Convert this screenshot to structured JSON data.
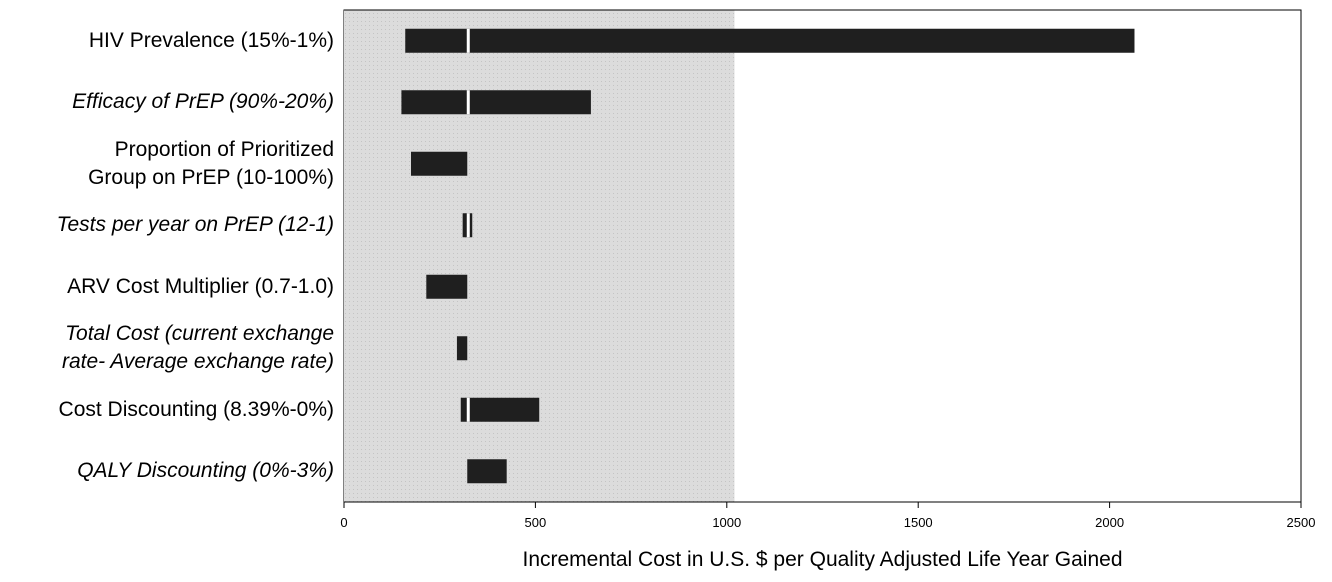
{
  "chart_data": {
    "type": "bar",
    "subtype": "tornado",
    "base_value": 322,
    "shaded_region": [
      0,
      1020
    ],
    "xlabel": "Incremental Cost in U.S. $ per Quality Adjusted Life Year Gained",
    "xlim": [
      0,
      2500
    ],
    "xticks": [
      "0",
      "500",
      "1000",
      "1500",
      "2000",
      "2500"
    ],
    "xtick_values": [
      0,
      500,
      1000,
      1500,
      2000,
      2500
    ],
    "grid": false,
    "legend": "none",
    "colors": {
      "bar": "#1f1f1f",
      "shade": "#dcdcdc",
      "axis": "#000000"
    },
    "categories": [
      {
        "lines": [
          "HIV Prevalence (15%-1%)"
        ],
        "italic": false,
        "low": 160,
        "high": 2065
      },
      {
        "lines": [
          "Efficacy of PrEP (90%-20%)"
        ],
        "italic": true,
        "low": 150,
        "high": 645
      },
      {
        "lines": [
          "Proportion of Prioritized",
          "Group on PrEP (10-100%)"
        ],
        "italic": false,
        "low": 175,
        "high": 322
      },
      {
        "lines": [
          "Tests per year on PrEP (12-1)"
        ],
        "italic": true,
        "low": 310,
        "high": 335
      },
      {
        "lines": [
          "ARV Cost Multiplier (0.7-1.0)"
        ],
        "italic": false,
        "low": 215,
        "high": 322
      },
      {
        "lines": [
          "Total Cost (current exchange",
          "rate- Average exchange rate)"
        ],
        "italic": true,
        "low": 295,
        "high": 322
      },
      {
        "lines": [
          "Cost Discounting (8.39%-0%)"
        ],
        "italic": false,
        "low": 305,
        "high": 510
      },
      {
        "lines": [
          "QALY Discounting (0%-3%)"
        ],
        "italic": true,
        "low": 322,
        "high": 425
      }
    ]
  }
}
